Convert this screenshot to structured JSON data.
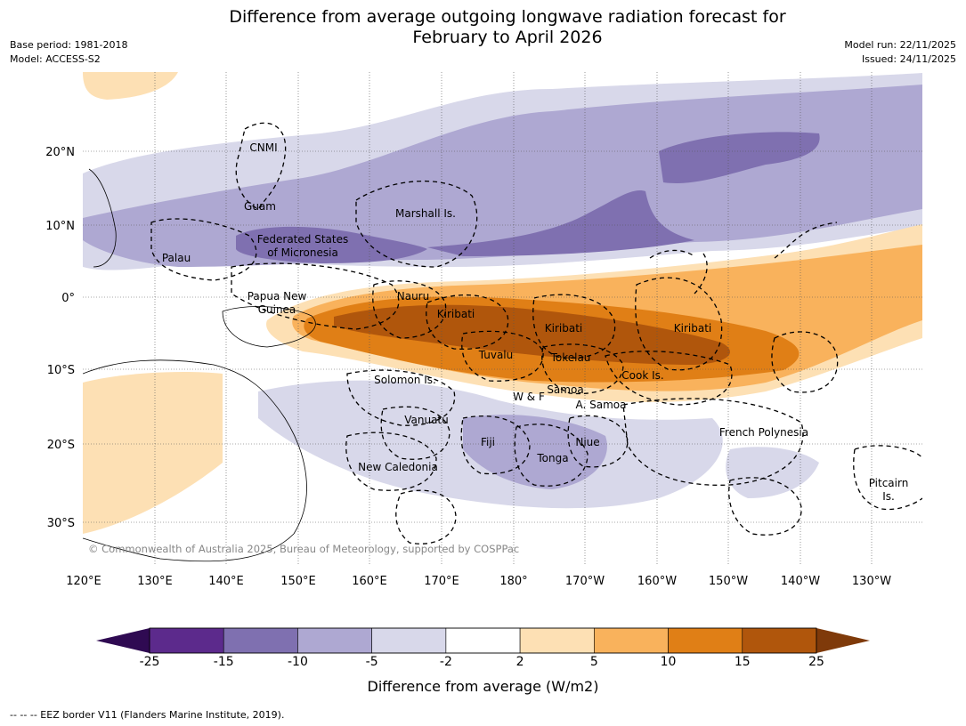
{
  "title_line1": "Difference from average outgoing longwave radiation forecast for",
  "title_line2": "February to April 2026",
  "base_period": "Base period: 1981-2018",
  "model": "Model: ACCESS-S2",
  "model_run": "Model run: 22/11/2025",
  "issued": "Issued: 24/11/2025",
  "copyright": "© Commonwealth of Australia 2025, Bureau of Meteorology, supported by COSPPac",
  "lat_labels": [
    "20°N",
    "10°N",
    "0°",
    "10°S",
    "20°S",
    "30°S"
  ],
  "lon_labels": [
    "120°E",
    "130°E",
    "140°E",
    "150°E",
    "160°E",
    "170°E",
    "180°",
    "170°W",
    "160°W",
    "150°W",
    "140°W",
    "130°W"
  ],
  "regions": {
    "cnmi": "CNMI",
    "guam": "Guam",
    "marshall": "Marshall Is.",
    "fsm_1": "Federated States",
    "fsm_2": "of Micronesia",
    "palau": "Palau",
    "png_1": "Papua New",
    "png_2": "Guinea",
    "nauru": "Nauru",
    "kiribati_w": "Kiribati",
    "kiribati_c": "Kiribati",
    "kiribati_e": "Kiribati",
    "tuvalu": "Tuvalu",
    "tokelau": "Tokelau",
    "cook": "Cook Is.",
    "solomon": "Solomon Is.",
    "wf": "W & F",
    "samoa": "Samoa",
    "asamoa": "A. Samoa",
    "vanuatu": "Vanuatu",
    "fiji": "Fiji",
    "niue": "Niue",
    "tonga": "Tonga",
    "newcal": "New Caledonia",
    "frpoly": "French Polynesia",
    "pitcairn_1": "Pitcairn",
    "pitcairn_2": "Is."
  },
  "colorbar": {
    "bins": [
      "#5c2a8c",
      "#7f70b0",
      "#aea8d2",
      "#d8d8ea",
      "#ffffff",
      "#fde0b4",
      "#f9b25c",
      "#e07f16",
      "#b0560c"
    ],
    "under_color": "#2f0a52",
    "over_color": "#7f3a0a",
    "labels": [
      "-25",
      "-15",
      "-10",
      "-5",
      "-2",
      "2",
      "5",
      "10",
      "15",
      "25"
    ],
    "title": "Difference from average (W/m2)"
  },
  "footnote": "--  --  -- EEZ border V11 (Flanders Marine Institute, 2019)."
}
